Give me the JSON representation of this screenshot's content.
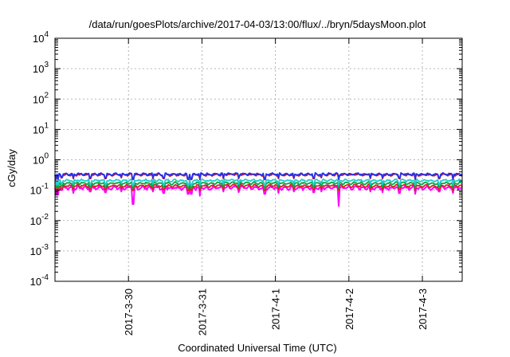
{
  "chart_data": {
    "type": "line",
    "title": "/data/run/goesPlots/archive/2017-04-03/13:00/flux/../bryn/5daysMoon.plot",
    "xlabel": "Coordinated Universal Time (UTC)",
    "ylabel": "cGy/day",
    "yscale": "log",
    "ylim": [
      0.0001,
      10000
    ],
    "xlim": [
      "2017-03-29 00:00",
      "2017-04-03 13:00"
    ],
    "yticks": [
      {
        "base": "10",
        "exp": "-4",
        "value": 0.0001
      },
      {
        "base": "10",
        "exp": "-3",
        "value": 0.001
      },
      {
        "base": "10",
        "exp": "-2",
        "value": 0.01
      },
      {
        "base": "10",
        "exp": "-1",
        "value": 0.1
      },
      {
        "base": "10",
        "exp": "0",
        "value": 1
      },
      {
        "base": "10",
        "exp": "1",
        "value": 10
      },
      {
        "base": "10",
        "exp": "2",
        "value": 100
      },
      {
        "base": "10",
        "exp": "3",
        "value": 1000
      },
      {
        "base": "10",
        "exp": "4",
        "value": 10000
      }
    ],
    "xticks": [
      {
        "label": "2017-3-30",
        "value": "2017-03-30 00:00"
      },
      {
        "label": "2017-3-31",
        "value": "2017-03-31 00:00"
      },
      {
        "label": "2017-4-1",
        "value": "2017-04-01 00:00"
      },
      {
        "label": "2017-4-2",
        "value": "2017-04-02 00:00"
      },
      {
        "label": "2017-4-3",
        "value": "2017-04-03 00:00"
      }
    ],
    "grid": true,
    "series": [
      {
        "color": "#ff00ff",
        "base": 0.12,
        "variability": 0.18
      },
      {
        "color": "#dd2222",
        "base": 0.14,
        "variability": 0.14
      },
      {
        "color": "#00aa44",
        "base": 0.17,
        "variability": 0.12
      },
      {
        "color": "#22cccc",
        "base": 0.21,
        "variability": 0.11
      },
      {
        "color": "#cc1122",
        "base": 0.32,
        "variability": 0.1
      },
      {
        "color": "#2233ee",
        "base": 0.34,
        "variability": 0.1
      }
    ],
    "dips": [
      {
        "time": "2017-03-29 00:20",
        "magenta": 0.07,
        "others": 0.7
      },
      {
        "time": "2017-03-29 01:00",
        "magenta": 0.07,
        "others": 0.7
      },
      {
        "time": "2017-03-29 02:10",
        "magenta": 0.1,
        "others": 0.8
      },
      {
        "time": "2017-03-29 06:00",
        "magenta": 0.08,
        "others": 0.75
      },
      {
        "time": "2017-03-29 11:30",
        "magenta": 0.09,
        "others": 0.75
      },
      {
        "time": "2017-03-29 16:30",
        "magenta": 0.085,
        "others": 0.75
      },
      {
        "time": "2017-03-29 21:40",
        "magenta": 0.09,
        "others": 0.8
      },
      {
        "time": "2017-03-30 01:30",
        "magenta": 0.035,
        "others": 0.7
      },
      {
        "time": "2017-03-30 08:00",
        "magenta": 0.09,
        "others": 0.75
      },
      {
        "time": "2017-03-30 11:30",
        "magenta": 0.08,
        "others": 0.75
      },
      {
        "time": "2017-03-30 19:30",
        "magenta": 0.075,
        "others": 0.7
      },
      {
        "time": "2017-03-30 20:30",
        "magenta": 0.075,
        "others": 0.7
      },
      {
        "time": "2017-03-30 23:20",
        "magenta": 0.065,
        "others": 0.7
      },
      {
        "time": "2017-03-31 07:00",
        "magenta": 0.09,
        "others": 0.75
      },
      {
        "time": "2017-03-31 12:00",
        "magenta": 0.085,
        "others": 0.75
      },
      {
        "time": "2017-03-31 20:30",
        "magenta": 0.075,
        "others": 0.7
      },
      {
        "time": "2017-04-01 01:00",
        "magenta": 0.08,
        "others": 0.75
      },
      {
        "time": "2017-04-01 06:00",
        "magenta": 0.09,
        "others": 0.75
      },
      {
        "time": "2017-04-01 12:30",
        "magenta": 0.085,
        "others": 0.75
      },
      {
        "time": "2017-04-01 15:00",
        "magenta": 0.09,
        "others": 0.8
      },
      {
        "time": "2017-04-01 20:40",
        "magenta": 0.03,
        "others": 0.7
      },
      {
        "time": "2017-04-02 07:00",
        "magenta": 0.09,
        "others": 0.75
      },
      {
        "time": "2017-04-02 11:00",
        "magenta": 0.085,
        "others": 0.75
      },
      {
        "time": "2017-04-02 16:30",
        "magenta": 0.08,
        "others": 0.75
      },
      {
        "time": "2017-04-02 21:40",
        "magenta": 0.075,
        "others": 0.7
      },
      {
        "time": "2017-04-03 05:30",
        "magenta": 0.09,
        "others": 0.75
      },
      {
        "time": "2017-04-03 10:00",
        "magenta": 0.08,
        "others": 0.7
      }
    ]
  }
}
